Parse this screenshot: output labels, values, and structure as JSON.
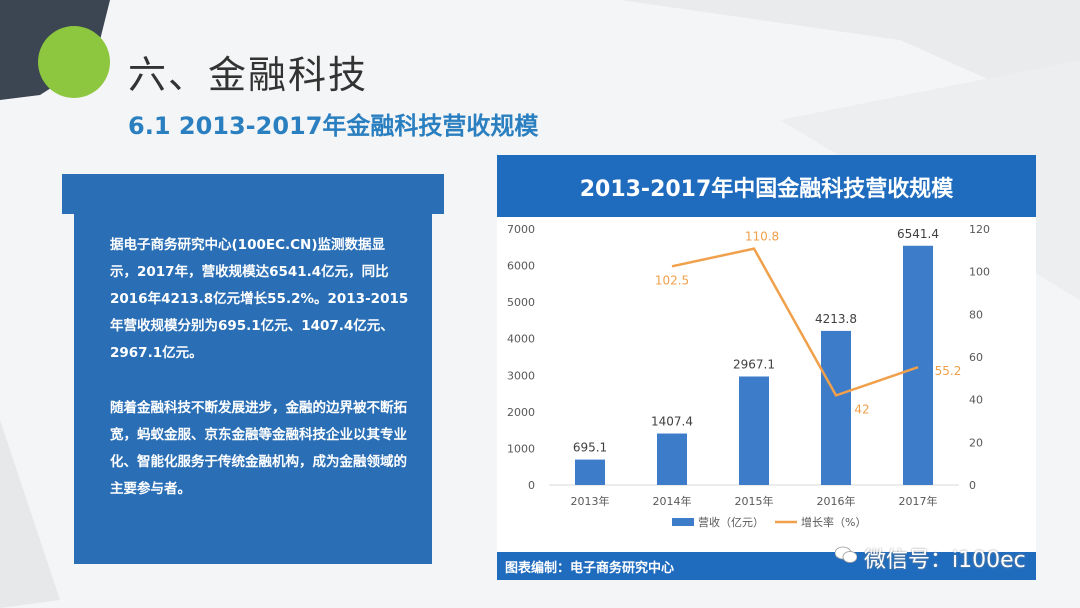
{
  "page": {
    "title": "六、金融科技",
    "subtitle": "6.1 2013-2017年金融科技营收规模"
  },
  "panel": {
    "paragraphs": [
      "据电子商务研究中心(100EC.CN)监测数据显示，2017年，营收规模达6541.4亿元，同比2016年4213.8亿元增长55.2%。2013-2015年营收规模分别为695.1亿元、1407.4亿元、2967.1亿元。",
      "随着金融科技不断发展进步，金融的边界被不断拓宽，蚂蚁金服、京东金融等金融科技企业以其专业化、智能化服务于传统金融机构，成为金融领域的主要参与者。"
    ]
  },
  "chart_header": "2013-2017年中国金融科技营收规模",
  "chart_footer": "图表编制：电子商务研究中心",
  "watermark": "微信号：i100ec",
  "colors": {
    "bar": "#3d7cc9",
    "line": "#f0a04b",
    "panel": "#2a6fb6",
    "header": "#1f6cbf"
  },
  "chart_data": {
    "type": "bar",
    "categories": [
      "2013年",
      "2014年",
      "2015年",
      "2016年",
      "2017年"
    ],
    "series": [
      {
        "name": "营收（亿元）",
        "type": "bar",
        "axis": "left",
        "values": [
          695.1,
          1407.4,
          2967.1,
          4213.8,
          6541.4
        ],
        "labels": [
          "695.1",
          "1407.4",
          "2967.1",
          "4213.8",
          "6541.4"
        ]
      },
      {
        "name": "增长率（%）",
        "type": "line",
        "axis": "right",
        "values": [
          null,
          102.5,
          110.8,
          42,
          55.2
        ],
        "labels": [
          "",
          "102.5",
          "110.8",
          "42",
          "55.2"
        ]
      }
    ],
    "ylim": [
      0,
      7000
    ],
    "yticks": [
      "0",
      "1000",
      "2000",
      "3000",
      "4000",
      "5000",
      "6000",
      "7000"
    ],
    "y2lim": [
      0,
      120
    ],
    "y2ticks": [
      "0",
      "20",
      "40",
      "60",
      "80",
      "100",
      "120"
    ],
    "legend": "bottom",
    "grid": false
  }
}
